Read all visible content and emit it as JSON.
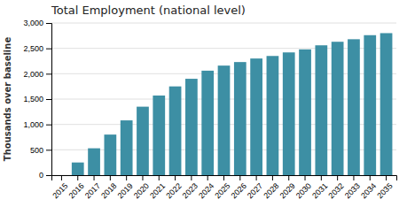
{
  "chart_data": {
    "type": "bar",
    "title": "Total Employment (national level)",
    "ylabel": "Thousands over baseline",
    "categories": [
      "2015",
      "2016",
      "2017",
      "2018",
      "2019",
      "2020",
      "2021",
      "2022",
      "2023",
      "2024",
      "2025",
      "2026",
      "2027",
      "2028",
      "2029",
      "2030",
      "2031",
      "2032",
      "2033",
      "2034",
      "2035"
    ],
    "values": [
      0,
      250,
      530,
      800,
      1080,
      1350,
      1570,
      1750,
      1900,
      2060,
      2160,
      2230,
      2300,
      2350,
      2420,
      2480,
      2560,
      2630,
      2680,
      2760,
      2800
    ],
    "color": "#3d8fa4",
    "ylim": [
      0,
      3000
    ],
    "yticks": [
      0,
      500,
      {
        "value": 1000,
        "label": "1,000"
      },
      {
        "value": 1500,
        "label": "1,500"
      },
      {
        "value": 2000,
        "label": "2,000"
      },
      {
        "value": 2500,
        "label": "2,500"
      },
      {
        "value": 3000,
        "label": "3,000"
      }
    ],
    "grid": true
  }
}
